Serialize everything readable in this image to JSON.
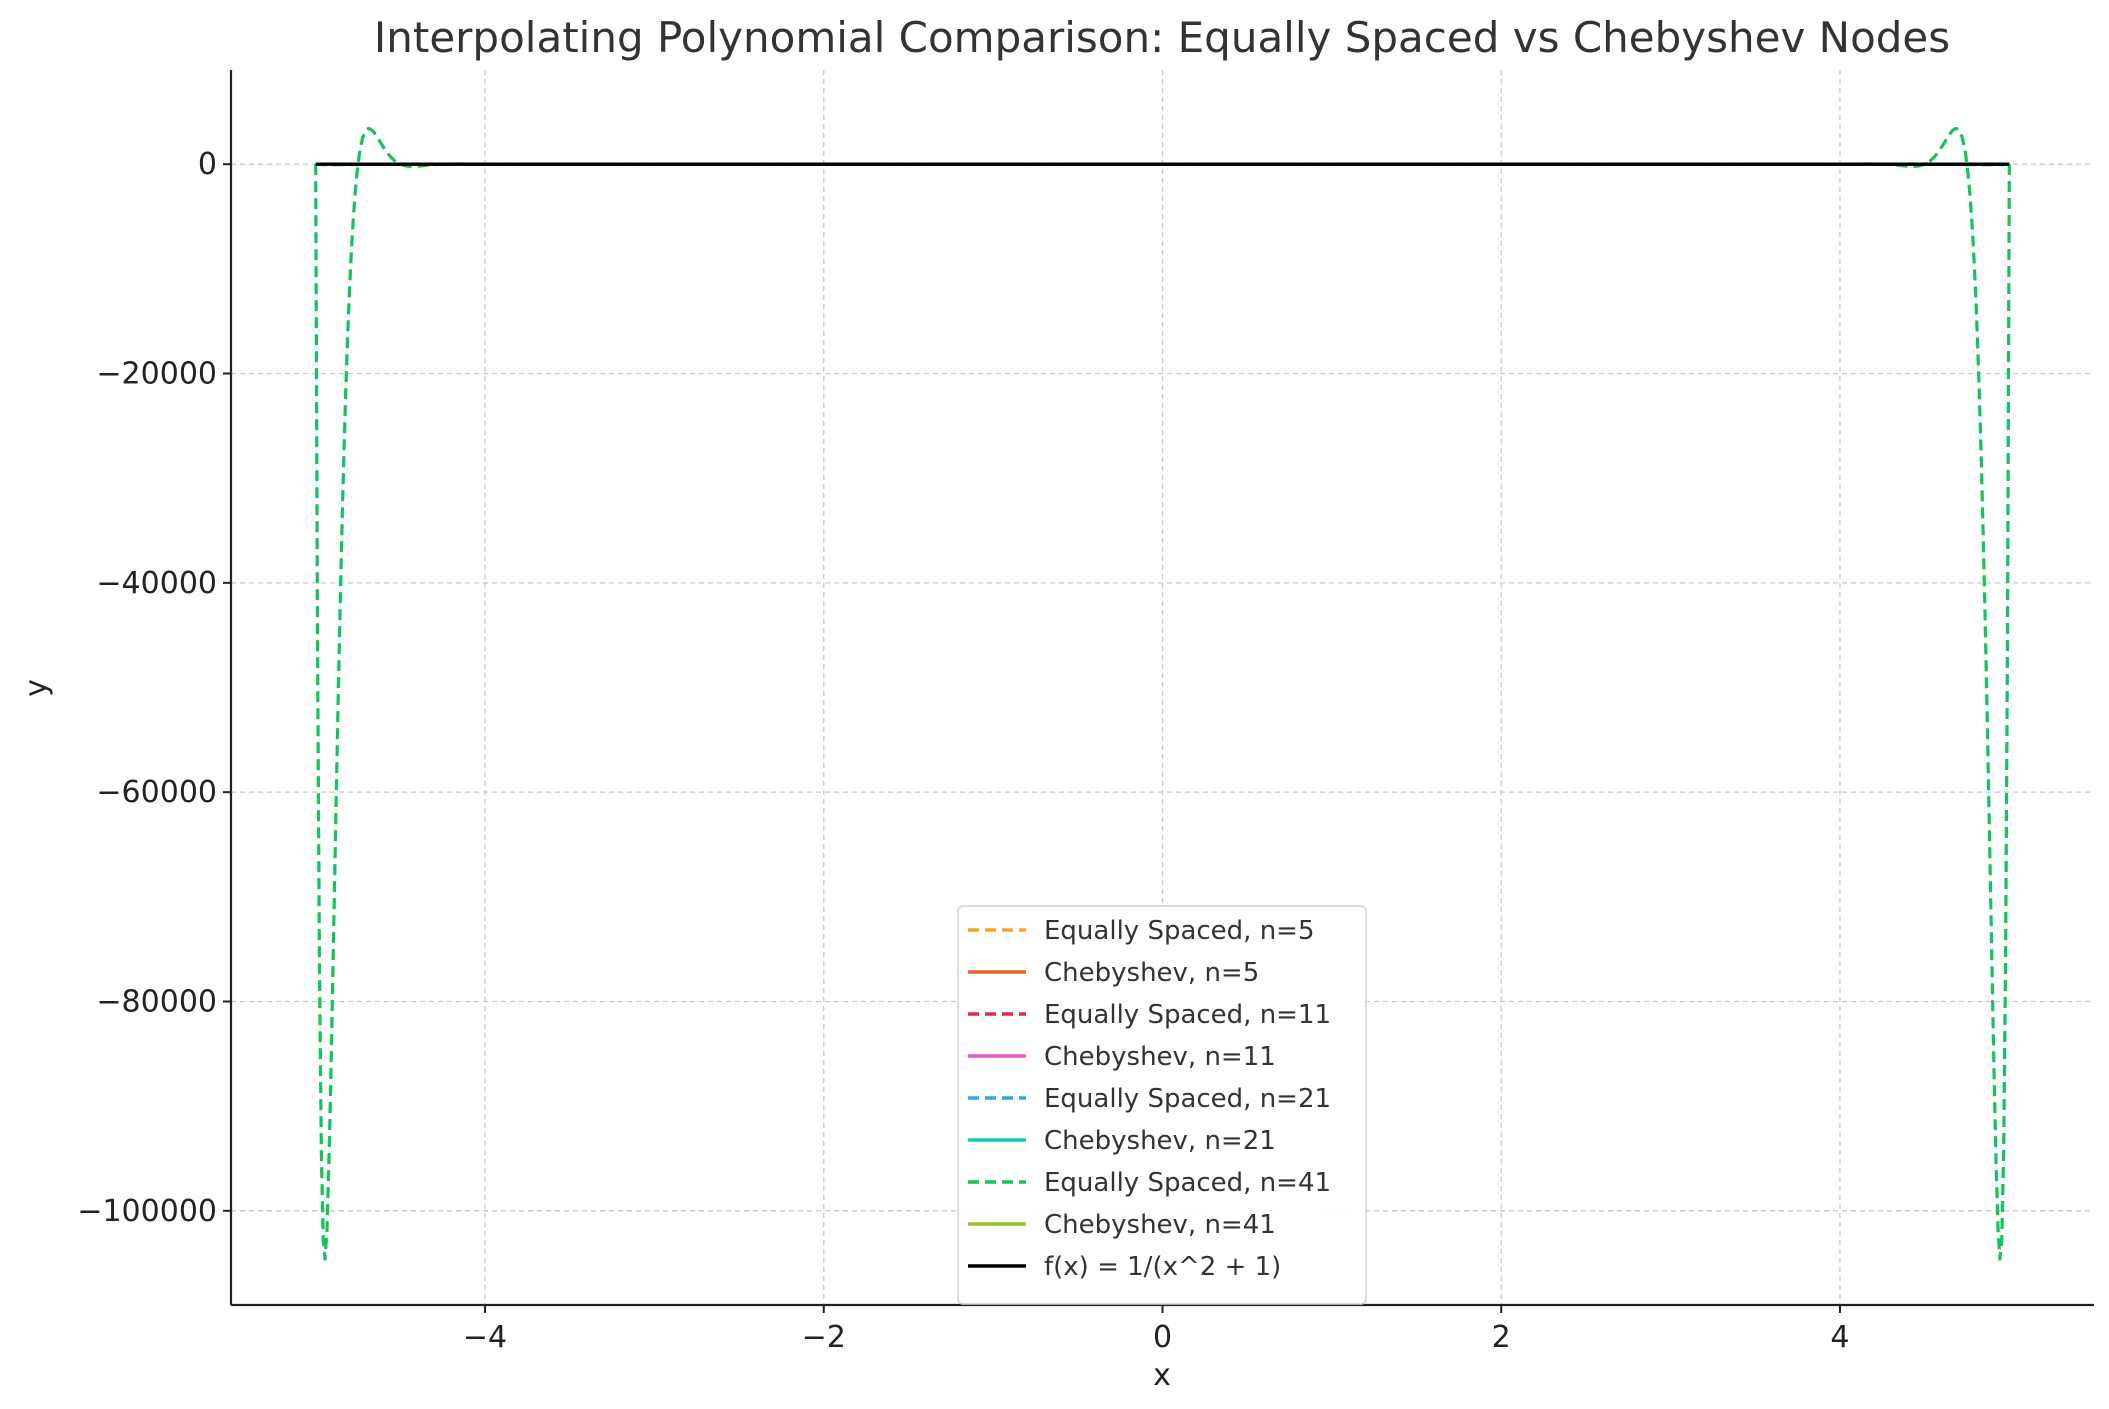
{
  "chart_data": {
    "type": "line",
    "title": "Interpolating Polynomial Comparison: Equally Spaced vs Chebyshev Nodes",
    "xlabel": "x",
    "ylabel": "y",
    "xlim": [
      -5.5,
      5.5
    ],
    "ylim": [
      -109000,
      9000
    ],
    "xticks": [
      -4,
      -2,
      0,
      2,
      4
    ],
    "xtick_labels": [
      "−4",
      "−2",
      "0",
      "2",
      "4"
    ],
    "yticks": [
      0,
      -20000,
      -40000,
      -60000,
      -80000,
      -100000
    ],
    "ytick_labels": [
      "0",
      "−20000",
      "−40000",
      "−60000",
      "−80000",
      "−100000"
    ],
    "grid": true,
    "legend_position": "lower center",
    "series": [
      {
        "name": "Equally Spaced, n=5",
        "color": "#f5a623",
        "dashed": true,
        "kind": "equispaced",
        "n": 5
      },
      {
        "name": "Chebyshev, n=5",
        "color": "#e8622c",
        "dashed": false,
        "kind": "chebyshev",
        "n": 5
      },
      {
        "name": "Equally Spaced, n=11",
        "color": "#e0284a",
        "dashed": true,
        "kind": "equispaced",
        "n": 11
      },
      {
        "name": "Chebyshev, n=11",
        "color": "#ee55c0",
        "dashed": false,
        "kind": "chebyshev",
        "n": 11
      },
      {
        "name": "Equally Spaced, n=21",
        "color": "#2aaae6",
        "dashed": true,
        "kind": "equispaced",
        "n": 21
      },
      {
        "name": "Chebyshev, n=21",
        "color": "#16c7bd",
        "dashed": false,
        "kind": "chebyshev",
        "n": 21
      },
      {
        "name": "Equally Spaced, n=41",
        "color": "#12c45a",
        "dashed": true,
        "kind": "equispaced",
        "n": 41
      },
      {
        "name": "Chebyshev, n=41",
        "color": "#95c22a",
        "dashed": false,
        "kind": "chebyshev",
        "n": 41
      },
      {
        "name": "f(x) = 1/(x^2 + 1)",
        "color": "#000000",
        "dashed": false,
        "kind": "function",
        "n": 0
      }
    ],
    "domain": [
      -5,
      5
    ]
  }
}
